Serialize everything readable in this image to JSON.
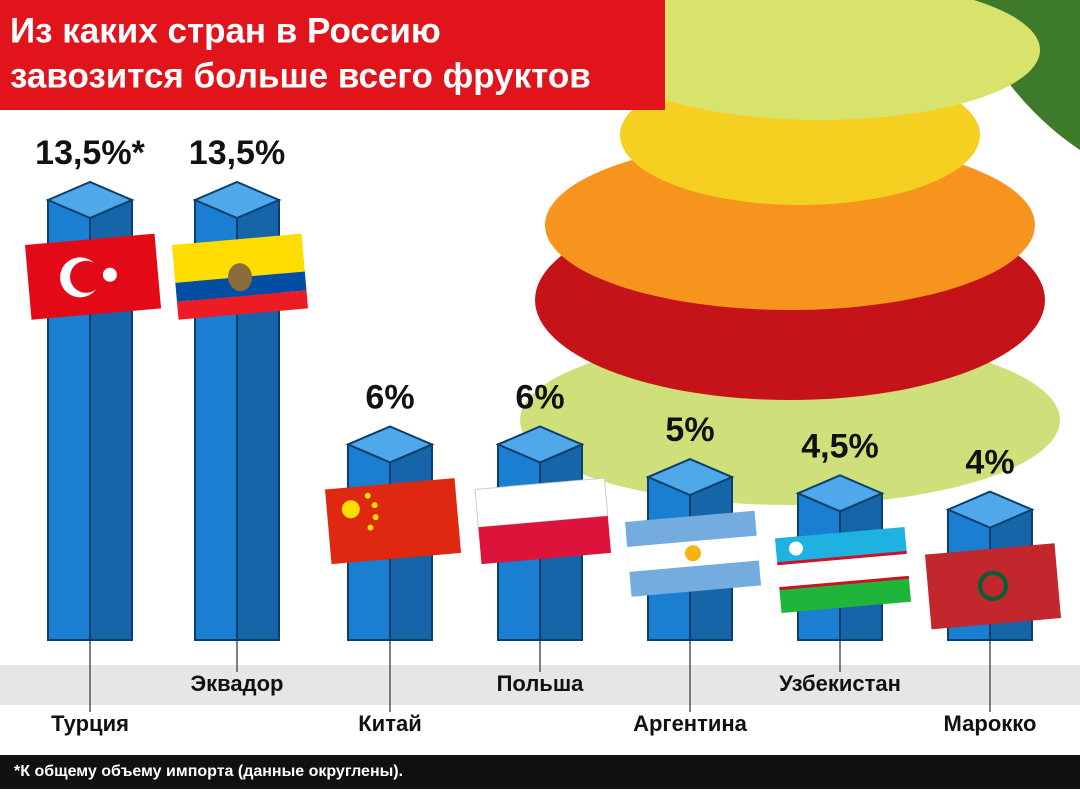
{
  "chart_data": {
    "type": "bar",
    "title": [
      "Из каких стран в Россию",
      "завозится больше всего фруктов"
    ],
    "categories": [
      "Турция",
      "Эквадор",
      "Китай",
      "Польша",
      "Аргентина",
      "Узбекистан",
      "Марокко"
    ],
    "values": [
      13.5,
      13.5,
      6,
      6,
      5,
      4.5,
      4
    ],
    "value_labels": [
      "13,5%*",
      "13,5%",
      "6%",
      "6%",
      "5%",
      "4,5%",
      "4%"
    ],
    "color": "#1a7fd0",
    "footnote": "*К общему объему импорта (данные округлены)."
  }
}
